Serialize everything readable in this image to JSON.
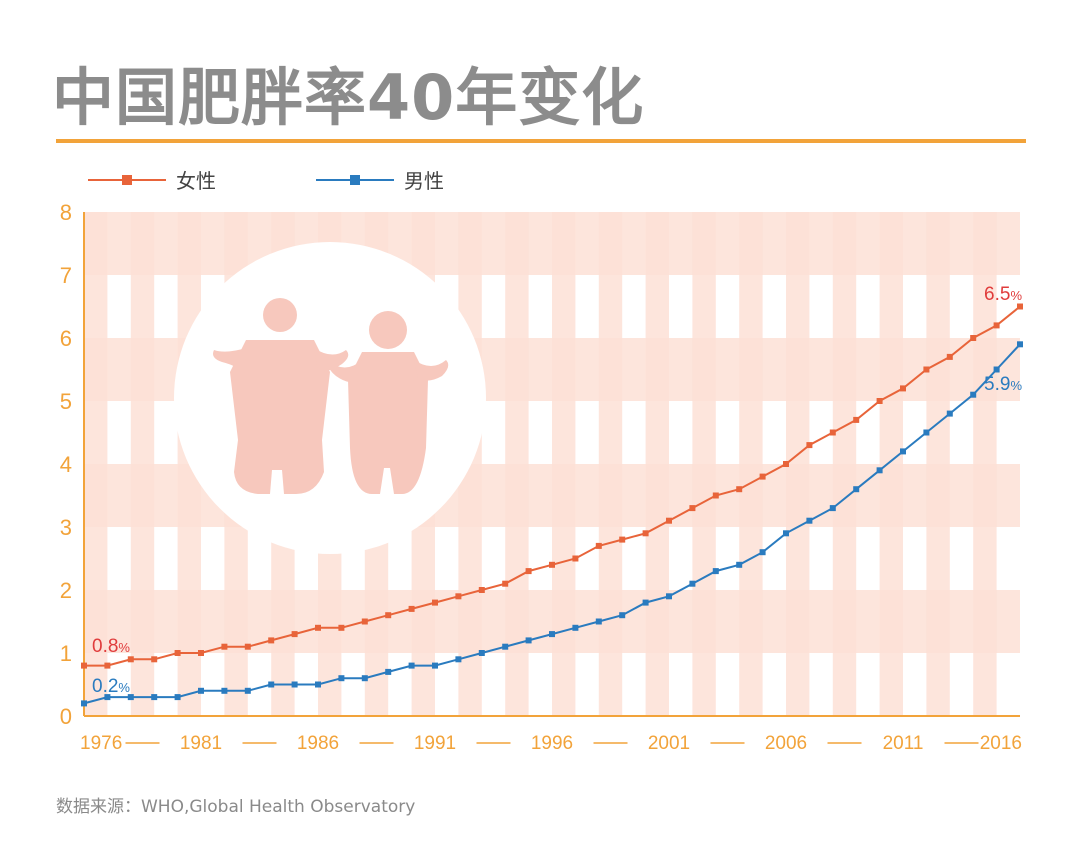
{
  "title": "中国肥胖率40年变化",
  "source": "数据来源：WHO,Global Health Observatory",
  "colors": {
    "female": "#e8643a",
    "male": "#2a7bbf",
    "axis": "#f2a33a",
    "tick_label": "#f2a33a",
    "stripe": "#fde1d6",
    "annotation_female": "#e03c3c",
    "annotation_male": "#2a7bbf",
    "illustration_circle": "#ffffff",
    "illustration_people": "#f7c8bd"
  },
  "chart_data": {
    "type": "line",
    "x": [
      1976,
      1977,
      1978,
      1979,
      1980,
      1981,
      1982,
      1983,
      1984,
      1985,
      1986,
      1987,
      1988,
      1989,
      1990,
      1991,
      1992,
      1993,
      1994,
      1995,
      1996,
      1997,
      1998,
      1999,
      2000,
      2001,
      2002,
      2003,
      2004,
      2005,
      2006,
      2007,
      2008,
      2009,
      2010,
      2011,
      2012,
      2013,
      2014,
      2015,
      2016
    ],
    "series": [
      {
        "name": "女性",
        "color": "#e8643a",
        "values": [
          0.8,
          0.8,
          0.9,
          0.9,
          1.0,
          1.0,
          1.1,
          1.1,
          1.2,
          1.3,
          1.4,
          1.4,
          1.5,
          1.6,
          1.7,
          1.8,
          1.9,
          2.0,
          2.1,
          2.3,
          2.4,
          2.5,
          2.7,
          2.8,
          2.9,
          3.1,
          3.3,
          3.5,
          3.6,
          3.8,
          4.0,
          4.3,
          4.5,
          4.7,
          5.0,
          5.2,
          5.5,
          5.7,
          6.0,
          6.2,
          6.5
        ]
      },
      {
        "name": "男性",
        "color": "#2a7bbf",
        "values": [
          0.2,
          0.3,
          0.3,
          0.3,
          0.3,
          0.4,
          0.4,
          0.4,
          0.5,
          0.5,
          0.5,
          0.6,
          0.6,
          0.7,
          0.8,
          0.8,
          0.9,
          1.0,
          1.1,
          1.2,
          1.3,
          1.4,
          1.5,
          1.6,
          1.8,
          1.9,
          2.1,
          2.3,
          2.4,
          2.6,
          2.9,
          3.1,
          3.3,
          3.6,
          3.9,
          4.2,
          4.5,
          4.8,
          5.1,
          5.5,
          5.9
        ]
      }
    ],
    "x_tick_labels": [
      "1976",
      "1981",
      "1986",
      "1991",
      "1996",
      "2001",
      "2006",
      "2011",
      "2016"
    ],
    "y_tick_labels": [
      "0",
      "1",
      "2",
      "3",
      "4",
      "5",
      "6",
      "7",
      "8"
    ],
    "xlim": [
      1976,
      2016
    ],
    "ylim": [
      0,
      8
    ],
    "legend": {
      "placement": "top-left"
    },
    "annotations": [
      {
        "series": "女性",
        "x": 1976,
        "value": "0.8",
        "unit": "%"
      },
      {
        "series": "男性",
        "x": 1976,
        "value": "0.2",
        "unit": "%"
      },
      {
        "series": "女性",
        "x": 2016,
        "value": "6.5",
        "unit": "%"
      },
      {
        "series": "男性",
        "x": 2016,
        "value": "5.9",
        "unit": "%"
      }
    ],
    "grid": false
  }
}
